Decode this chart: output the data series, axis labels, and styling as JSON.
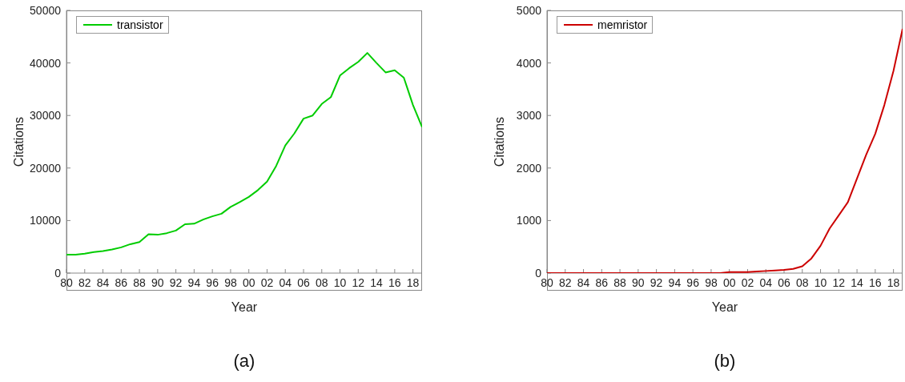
{
  "chart_data": [
    {
      "type": "line",
      "xlabel": "Year",
      "ylabel": "Citations",
      "annotations": [
        "(a)"
      ],
      "legend": "top left",
      "marker": "none",
      "grid": false,
      "x": [
        1980,
        1981,
        1982,
        1983,
        1984,
        1985,
        1986,
        1987,
        1988,
        1989,
        1990,
        1991,
        1992,
        1993,
        1994,
        1995,
        1996,
        1997,
        1998,
        1999,
        2000,
        2001,
        2002,
        2003,
        2004,
        2005,
        2006,
        2007,
        2008,
        2009,
        2010,
        2011,
        2012,
        2013,
        2014,
        2015,
        2016,
        2017,
        2018,
        2019
      ],
      "series": [
        {
          "name": "transistor",
          "color": "#00cc00",
          "values": [
            3500,
            3500,
            3700,
            4000,
            4200,
            4500,
            4900,
            5500,
            5900,
            7400,
            7300,
            7600,
            8100,
            9300,
            9400,
            10200,
            10800,
            11300,
            12600,
            13500,
            14500,
            15800,
            17400,
            20400,
            24300,
            26600,
            29400,
            30000,
            32200,
            33500,
            37600,
            39000,
            40200,
            41900,
            40000,
            38200,
            38600,
            37200,
            32000,
            27800
          ]
        }
      ],
      "xlim": [
        1980,
        2019
      ],
      "xticks": [
        {
          "value": 1980,
          "label": "80"
        },
        {
          "value": 1982,
          "label": "82"
        },
        {
          "value": 1984,
          "label": "84"
        },
        {
          "value": 1986,
          "label": "86"
        },
        {
          "value": 1988,
          "label": "88"
        },
        {
          "value": 1990,
          "label": "90"
        },
        {
          "value": 1992,
          "label": "92"
        },
        {
          "value": 1994,
          "label": "94"
        },
        {
          "value": 1996,
          "label": "96"
        },
        {
          "value": 1998,
          "label": "98"
        },
        {
          "value": 2000,
          "label": "00"
        },
        {
          "value": 2002,
          "label": "02"
        },
        {
          "value": 2004,
          "label": "04"
        },
        {
          "value": 2006,
          "label": "06"
        },
        {
          "value": 2008,
          "label": "08"
        },
        {
          "value": 2010,
          "label": "10"
        },
        {
          "value": 2012,
          "label": "12"
        },
        {
          "value": 2014,
          "label": "14"
        },
        {
          "value": 2016,
          "label": "16"
        },
        {
          "value": 2018,
          "label": "18"
        }
      ],
      "ylim": [
        0,
        50000
      ],
      "yticks": [
        0,
        10000,
        20000,
        30000,
        40000,
        50000
      ]
    },
    {
      "type": "line",
      "xlabel": "Year",
      "ylabel": "Citations",
      "annotations": [
        "(b)"
      ],
      "legend": "top left",
      "marker": "none",
      "grid": false,
      "x": [
        1980,
        1981,
        1982,
        1983,
        1984,
        1985,
        1986,
        1987,
        1988,
        1989,
        1990,
        1991,
        1992,
        1993,
        1994,
        1995,
        1996,
        1997,
        1998,
        1999,
        2000,
        2001,
        2002,
        2003,
        2004,
        2005,
        2006,
        2007,
        2008,
        2009,
        2010,
        2011,
        2012,
        2013,
        2014,
        2015,
        2016,
        2017,
        2018,
        2019
      ],
      "series": [
        {
          "name": "memristor",
          "color": "#cc0000",
          "values": [
            0,
            0,
            0,
            0,
            0,
            0,
            0,
            0,
            0,
            0,
            0,
            0,
            0,
            0,
            0,
            0,
            0,
            0,
            0,
            0,
            20,
            20,
            20,
            30,
            40,
            50,
            60,
            80,
            130,
            280,
            520,
            850,
            1100,
            1350,
            1800,
            2250,
            2650,
            3200,
            3850,
            4650
          ]
        }
      ],
      "xlim": [
        1980,
        2019
      ],
      "xticks": [
        {
          "value": 1980,
          "label": "80"
        },
        {
          "value": 1982,
          "label": "82"
        },
        {
          "value": 1984,
          "label": "84"
        },
        {
          "value": 1986,
          "label": "86"
        },
        {
          "value": 1988,
          "label": "88"
        },
        {
          "value": 1990,
          "label": "90"
        },
        {
          "value": 1992,
          "label": "92"
        },
        {
          "value": 1994,
          "label": "94"
        },
        {
          "value": 1996,
          "label": "96"
        },
        {
          "value": 1998,
          "label": "98"
        },
        {
          "value": 2000,
          "label": "00"
        },
        {
          "value": 2002,
          "label": "02"
        },
        {
          "value": 2004,
          "label": "04"
        },
        {
          "value": 2006,
          "label": "06"
        },
        {
          "value": 2008,
          "label": "08"
        },
        {
          "value": 2010,
          "label": "10"
        },
        {
          "value": 2012,
          "label": "12"
        },
        {
          "value": 2014,
          "label": "14"
        },
        {
          "value": 2016,
          "label": "16"
        },
        {
          "value": 2018,
          "label": "18"
        }
      ],
      "ylim": [
        0,
        5000
      ],
      "yticks": [
        0,
        1000,
        2000,
        3000,
        4000,
        5000
      ]
    }
  ]
}
